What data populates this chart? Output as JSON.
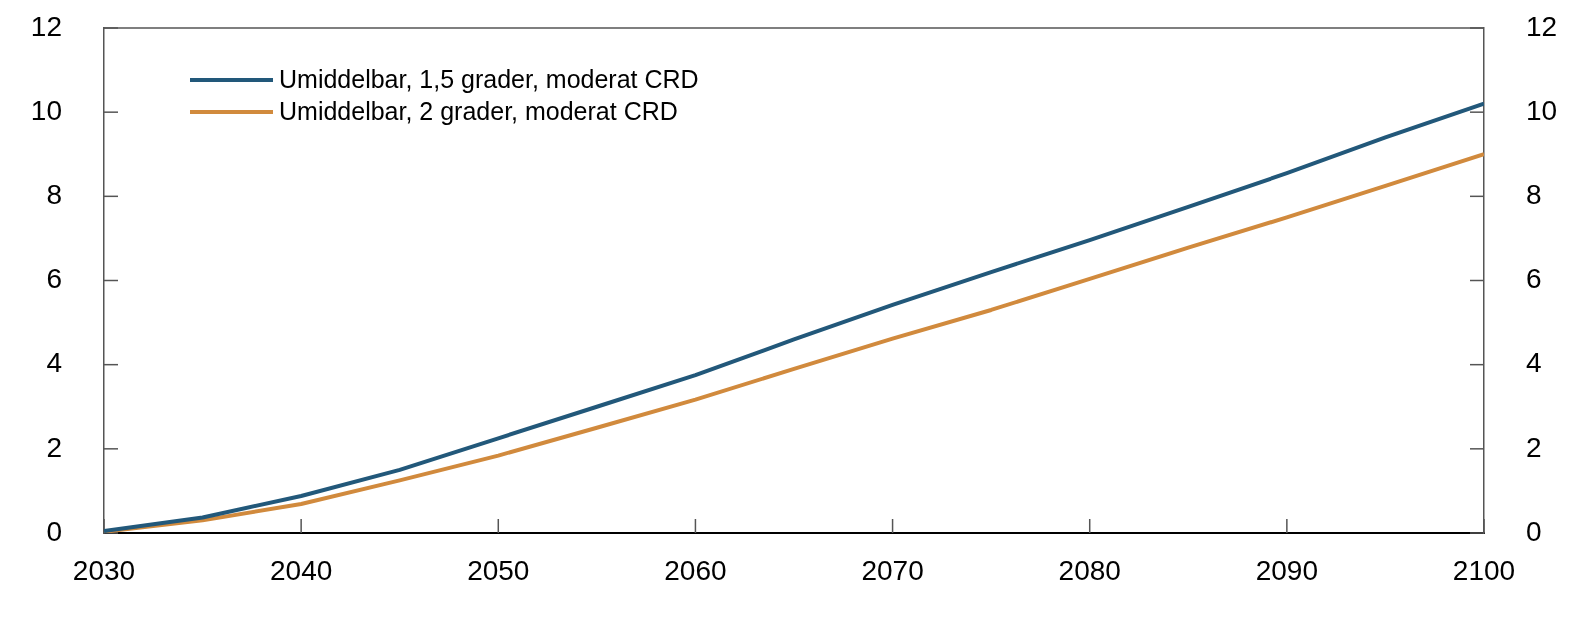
{
  "chart_data": {
    "type": "line",
    "x": [
      2030,
      2035,
      2040,
      2045,
      2050,
      2055,
      2060,
      2065,
      2070,
      2075,
      2080,
      2085,
      2090,
      2095,
      2100
    ],
    "series": [
      {
        "name": "Umiddelbar, 1,5 grader, moderat CRD",
        "color": "#22587a",
        "values": [
          0.05,
          0.37,
          0.88,
          1.5,
          2.25,
          3.0,
          3.75,
          4.6,
          5.42,
          6.2,
          6.96,
          7.75,
          8.55,
          9.4,
          10.2
        ]
      },
      {
        "name": "Umiddelbar, 2 grader, moderat CRD",
        "color": "#d18a3d",
        "values": [
          0.03,
          0.3,
          0.69,
          1.25,
          1.84,
          2.5,
          3.17,
          3.9,
          4.62,
          5.3,
          6.04,
          6.78,
          7.5,
          8.25,
          9.0
        ]
      }
    ],
    "xlim": [
      2030,
      2100
    ],
    "xticks": [
      2030,
      2040,
      2050,
      2060,
      2070,
      2080,
      2090,
      2100
    ],
    "ylim": [
      0,
      12
    ],
    "yticks": [
      0,
      2,
      4,
      6,
      8,
      10,
      12
    ],
    "y2lim": [
      0,
      12
    ],
    "y2ticks": [
      0,
      2,
      4,
      6,
      8,
      10,
      12
    ],
    "legend": "top left",
    "marker": "none"
  }
}
